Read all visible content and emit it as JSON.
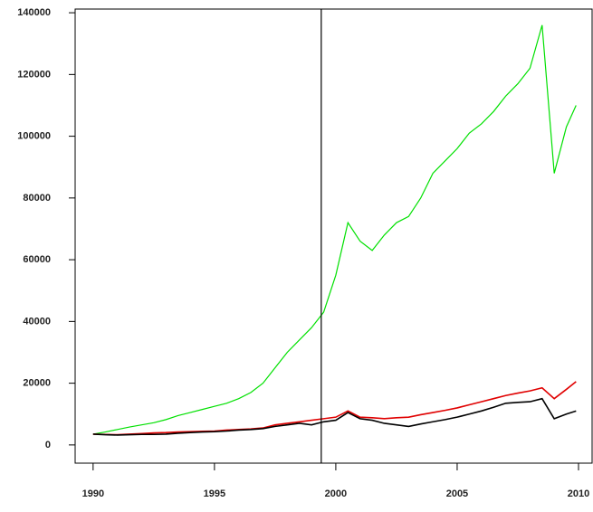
{
  "chart_data": {
    "type": "line",
    "x": [
      1990,
      1990.5,
      1991,
      1991.5,
      1992,
      1992.5,
      1993,
      1993.5,
      1994,
      1994.5,
      1995,
      1995.5,
      1996,
      1996.5,
      1997,
      1997.5,
      1998,
      1998.5,
      1999,
      1999.5,
      2000,
      2000.5,
      2001,
      2001.5,
      2002,
      2002.5,
      2003,
      2003.5,
      2004,
      2004.5,
      2005,
      2005.5,
      2006,
      2006.5,
      2007,
      2007.5,
      2008,
      2008.5,
      2009,
      2009.5,
      2009.9
    ],
    "series": [
      {
        "color": "#00e000",
        "values": [
          3500,
          4200,
          5000,
          5800,
          6500,
          7200,
          8200,
          9500,
          10500,
          11500,
          12500,
          13500,
          15000,
          17000,
          20000,
          25000,
          30000,
          34000,
          38000,
          43000,
          55000,
          72000,
          66000,
          63000,
          68000,
          72000,
          74000,
          80000,
          88000,
          92000,
          96000,
          101000,
          104000,
          108000,
          113000,
          117000,
          122000,
          136000,
          88000,
          103000,
          110000
        ]
      },
      {
        "color": "#e00000",
        "values": [
          3500,
          3400,
          3300,
          3500,
          3700,
          3900,
          4000,
          4200,
          4300,
          4400,
          4500,
          4800,
          5000,
          5200,
          5500,
          6500,
          7000,
          7500,
          8000,
          8500,
          9000,
          11000,
          9000,
          8800,
          8500,
          8800,
          9000,
          9800,
          10500,
          11200,
          12000,
          13000,
          14000,
          15000,
          16000,
          16800,
          17500,
          18500,
          15000,
          18000,
          20500
        ]
      },
      {
        "color": "#000000",
        "values": [
          3500,
          3300,
          3200,
          3300,
          3400,
          3400,
          3500,
          3800,
          4000,
          4200,
          4300,
          4500,
          4800,
          5000,
          5300,
          6000,
          6500,
          7000,
          6500,
          7500,
          8000,
          10500,
          8500,
          8000,
          7000,
          6500,
          6000,
          6800,
          7500,
          8200,
          9000,
          10000,
          11000,
          12200,
          13500,
          13800,
          14000,
          15000,
          8500,
          10000,
          11000
        ]
      }
    ],
    "vline": 1999.4,
    "xlim": [
      1989.26,
      2010.56
    ],
    "xticks": [
      1990,
      1995,
      2000,
      2005,
      2010
    ],
    "ylim": [
      -5900,
      141200
    ],
    "yticks": [
      0,
      20000,
      40000,
      60000,
      80000,
      100000,
      120000,
      140000
    ]
  }
}
